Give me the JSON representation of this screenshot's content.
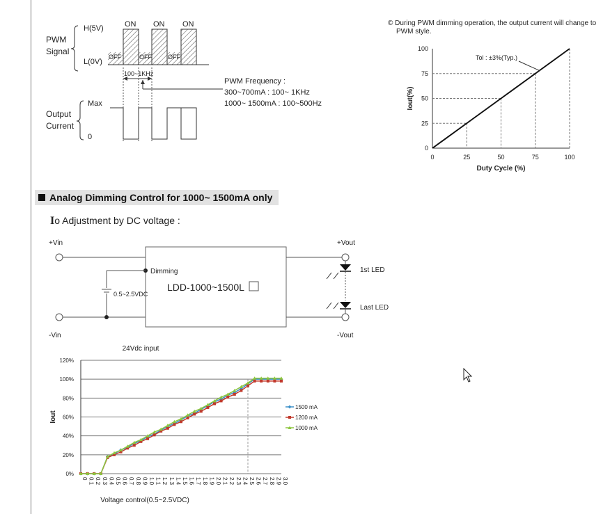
{
  "pwm": {
    "signal_label_1": "PWM",
    "signal_label_2": "Signal",
    "high_label": "H(5V)",
    "low_label": "L(0V)",
    "on_label": "ON",
    "off_label": "OFF",
    "period_label": "100~1KHz",
    "freq_title": "PWM Frequency :",
    "freq_line1": "300~700mA : 100~ 1KHz",
    "freq_line2": "1000~ 1500mA : 100~500Hz",
    "output_label_1": "Output",
    "output_label_2": "Current",
    "max_label": "Max",
    "zero_label": "0"
  },
  "pwm_note": {
    "symbol": "©",
    "line1": "During PWM dimming operation, the output current will change to",
    "line2": "PWM style."
  },
  "pwm_chart": {
    "chart_data": {
      "type": "line",
      "title": "",
      "xlabel": "Duty Cycle (%)",
      "ylabel": "Iout(%)",
      "x": [
        0,
        25,
        50,
        75,
        100
      ],
      "y": [
        0,
        25,
        50,
        75,
        100
      ],
      "xlim": [
        0,
        100
      ],
      "ylim": [
        0,
        100
      ],
      "x_ticks": [
        "0",
        "25",
        "50",
        "75",
        "100"
      ],
      "y_ticks": [
        "0",
        "25",
        "50",
        "75",
        "100"
      ],
      "annotation": "Tol : ±3%(Typ.)"
    }
  },
  "section": {
    "title": "Analog Dimming Control for 1000~ 1500mA only"
  },
  "io_adjust": {
    "io_prefix": "I",
    "title_rest": "o Adjustment by DC voltage :"
  },
  "circuit": {
    "vin_plus": "+Vin",
    "vin_minus": "-Vin",
    "vout_plus": "+Vout",
    "vout_minus": "-Vout",
    "dimming": "Dimming",
    "voltage": "0.5~2.5VDC",
    "module": "LDD-1000~1500L",
    "first_led": "1st LED",
    "last_led": "Last LED"
  },
  "analog_chart": {
    "chart_data": {
      "type": "line",
      "title": "24Vdc input",
      "xlabel": "Voltage control(0.5~2.5VDC)",
      "ylabel": "Iout",
      "categories": [
        "0",
        "0.1",
        "0.2",
        "0.3",
        "0.4",
        "0.5",
        "0.6",
        "0.7",
        "0.8",
        "0.9",
        "1.0",
        "1.1",
        "1.2",
        "1.3",
        "1.4",
        "1.5",
        "1.6",
        "1.7",
        "1.8",
        "1.9",
        "2.0",
        "2.1",
        "2.2",
        "2.3",
        "2.4",
        "2.5",
        "2.6",
        "2.7",
        "2.8",
        "2.9",
        "3.0"
      ],
      "y_ticks": [
        "0%",
        "20%",
        "40%",
        "60%",
        "80%",
        "100%",
        "120%"
      ],
      "ylim": [
        0,
        120
      ],
      "legend_position": "right",
      "series": [
        {
          "name": "1500 mA",
          "color": "#3a8fc8",
          "marker": "diamond",
          "values": [
            0,
            0,
            0,
            0,
            18,
            21,
            25,
            28,
            32,
            35,
            39,
            42,
            46,
            50,
            53,
            57,
            61,
            64,
            68,
            72,
            76,
            79,
            83,
            86,
            90,
            95,
            100,
            100,
            100,
            100,
            100
          ]
        },
        {
          "name": "1200 mA",
          "color": "#c0392b",
          "marker": "square",
          "values": [
            0,
            0,
            0,
            0,
            17,
            20,
            23,
            27,
            30,
            34,
            37,
            41,
            45,
            48,
            52,
            55,
            59,
            63,
            66,
            70,
            74,
            77,
            81,
            84,
            88,
            93,
            98,
            98,
            98,
            98,
            98
          ]
        },
        {
          "name": "1000 mA",
          "color": "#8dc63f",
          "marker": "triangle",
          "values": [
            0,
            0,
            0,
            0,
            18,
            22,
            25,
            29,
            33,
            36,
            40,
            44,
            47,
            51,
            55,
            58,
            62,
            66,
            69,
            73,
            77,
            81,
            84,
            88,
            92,
            96,
            101,
            101,
            101,
            101,
            101
          ]
        }
      ]
    }
  }
}
